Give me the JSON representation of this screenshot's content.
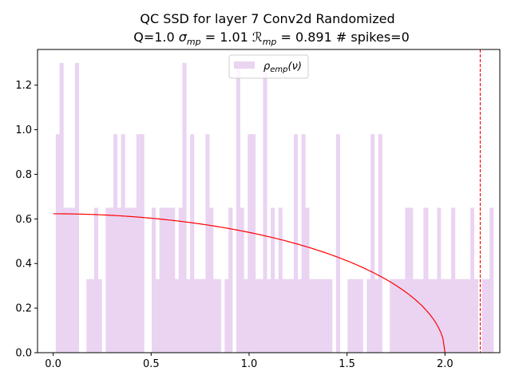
{
  "chart_data": {
    "type": "bar",
    "title": "QC SSD for layer 7 Conv2d Randomized",
    "subtitle": "Q=1.0 σ_mp = 1.01 ℛ_mp = 0.891 # spikes=0",
    "xlabel": "",
    "ylabel": "",
    "xlim": [
      -0.08,
      2.28
    ],
    "ylim": [
      0,
      1.36
    ],
    "xticks": [
      0.0,
      0.5,
      1.0,
      1.5,
      2.0
    ],
    "xtick_labels": [
      "0.0",
      "0.5",
      "1.0",
      "1.5",
      "2.0"
    ],
    "yticks": [
      0.0,
      0.2,
      0.4,
      0.6,
      0.8,
      1.0,
      1.2
    ],
    "ytick_labels": [
      "0.0",
      "0.2",
      "0.4",
      "0.6",
      "0.8",
      "1.0",
      "1.2"
    ],
    "grid": false,
    "legend": {
      "placement": "top-center",
      "entries": [
        "ρ_emp(ν)"
      ]
    },
    "histogram": {
      "name": "ρ_emp(ν)",
      "color": "#ead4f2",
      "bin_start": 0.013,
      "bin_width": 0.0196,
      "values": [
        0.98,
        1.3,
        0.65,
        0.65,
        0.65,
        1.3,
        0.0,
        0.0,
        0.33,
        0.33,
        0.65,
        0.33,
        0.0,
        0.65,
        0.65,
        0.98,
        0.65,
        0.98,
        0.65,
        0.65,
        0.65,
        0.98,
        0.98,
        0.0,
        0.0,
        0.65,
        0.33,
        0.65,
        0.65,
        0.65,
        0.65,
        0.33,
        0.65,
        1.3,
        0.33,
        0.98,
        0.33,
        0.33,
        0.33,
        0.98,
        0.65,
        0.33,
        0.33,
        0.0,
        0.33,
        0.65,
        0.0,
        1.3,
        0.65,
        0.33,
        0.98,
        0.98,
        0.33,
        0.33,
        1.3,
        0.33,
        0.65,
        0.33,
        0.65,
        0.33,
        0.33,
        0.33,
        0.98,
        0.33,
        0.98,
        0.65,
        0.33,
        0.33,
        0.33,
        0.33,
        0.33,
        0.33,
        0.0,
        0.98,
        0.0,
        0.0,
        0.33,
        0.33,
        0.33,
        0.33,
        0.0,
        0.33,
        0.98,
        0.33,
        0.98,
        0.0,
        0.0,
        0.33,
        0.33,
        0.33,
        0.33,
        0.65,
        0.65,
        0.33,
        0.33,
        0.33,
        0.65,
        0.33,
        0.33,
        0.33,
        0.33,
        0.33,
        0.33,
        0.65,
        0.33,
        0.33,
        0.33,
        0.33,
        0.33,
        0.33,
        0.0,
        0.33,
        0.33,
        0.65,
        0.0,
        0.0,
        0.0,
        0.0,
        0.0,
        0.33,
        0.0,
        0.0,
        0.0,
        0.0,
        0.0,
        0.0,
        0.0,
        0.33,
        0.0,
        0.0,
        0.0,
        0.0,
        0.0,
        0.0,
        0.0,
        0.0,
        0.0,
        0.0,
        0.0,
        0.0,
        0.0,
        0.0
      ]
    },
    "extra_bins": [
      {
        "x": 1.8,
        "value": 0.33
      },
      {
        "x": 1.89,
        "value": 0.65
      },
      {
        "x": 1.96,
        "value": 0.65
      },
      {
        "x": 2.13,
        "value": 0.65
      }
    ],
    "curve": {
      "type": "line",
      "color": "#ff0000",
      "lambda_minus": 0.0,
      "lambda_plus": 2.0,
      "peak": 0.623
    },
    "vline": {
      "x": 2.18,
      "color": "#ff0000",
      "style": "dashed"
    }
  }
}
